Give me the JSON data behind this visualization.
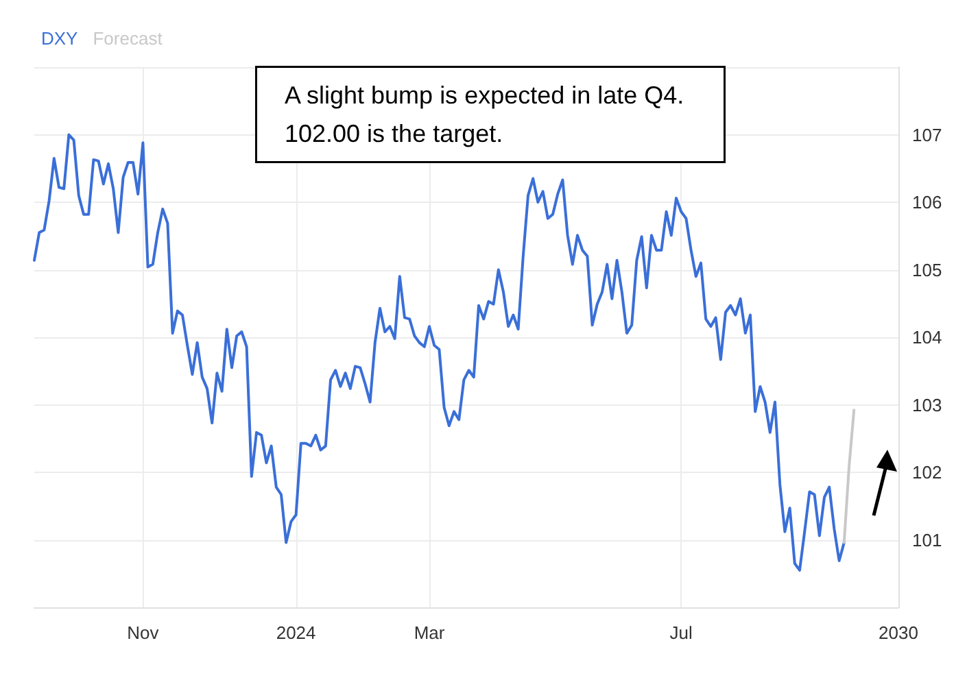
{
  "chart_data": {
    "type": "line",
    "annotations": [
      "A slight bump is expected in late Q4. 102.00 is the target."
    ],
    "categories": [
      null,
      null,
      null,
      null,
      null,
      null,
      null,
      null,
      null,
      null,
      null,
      null,
      null,
      null,
      null,
      null,
      null,
      null,
      null,
      null,
      null,
      null,
      "Nov",
      null,
      null,
      null,
      null,
      null,
      null,
      null,
      null,
      null,
      null,
      null,
      null,
      null,
      null,
      null,
      null,
      null,
      null,
      null,
      null,
      null,
      null,
      null,
      null,
      null,
      null,
      null,
      null,
      null,
      null,
      "2024",
      null,
      null,
      null,
      null,
      null,
      null,
      null,
      null,
      null,
      null,
      null,
      null,
      null,
      null,
      null,
      null,
      null,
      null,
      null,
      null,
      null,
      null,
      null,
      null,
      null,
      null,
      "Mar",
      null,
      null,
      null,
      null,
      null,
      null,
      null,
      null,
      null,
      null,
      null,
      null,
      null,
      null,
      null,
      null,
      null,
      null,
      null,
      null,
      null,
      null,
      null,
      null,
      null,
      null,
      null,
      null,
      null,
      null,
      null,
      null,
      null,
      null,
      null,
      null,
      null,
      null,
      null,
      null,
      null,
      null,
      null,
      null,
      null,
      null,
      null,
      null,
      null,
      null,
      "Jul",
      null,
      null,
      null,
      null,
      null,
      null,
      null,
      null,
      null,
      null,
      null,
      null,
      null,
      null,
      null,
      null,
      null,
      null,
      null,
      null,
      null,
      null,
      null,
      null,
      null,
      null,
      null,
      null,
      null,
      null,
      null,
      null,
      null,
      null,
      null,
      null,
      null,
      null,
      null,
      null,
      null,
      null,
      null,
      "2030"
    ],
    "series": [
      {
        "name": "DXY",
        "color": "#3a6fd8",
        "values": [
          105.14,
          105.55,
          105.59,
          106.02,
          106.65,
          106.22,
          106.2,
          107.0,
          106.92,
          106.1,
          105.82,
          105.82,
          106.63,
          106.61,
          106.27,
          106.57,
          106.2,
          105.55,
          106.37,
          106.59,
          106.59,
          106.12,
          106.88,
          105.04,
          105.08,
          105.55,
          105.9,
          105.69,
          104.06,
          104.39,
          104.33,
          103.88,
          103.45,
          103.92,
          103.41,
          103.24,
          102.73,
          103.47,
          103.2,
          104.12,
          103.55,
          104.02,
          104.08,
          103.86,
          101.94,
          102.59,
          102.55,
          102.14,
          102.39,
          101.78,
          101.67,
          100.96,
          101.27,
          101.37,
          102.43,
          102.43,
          102.39,
          102.55,
          102.33,
          102.39,
          103.37,
          103.51,
          103.27,
          103.47,
          103.24,
          103.57,
          103.55,
          103.31,
          103.04,
          103.92,
          104.43,
          104.08,
          104.16,
          103.98,
          104.9,
          104.29,
          104.27,
          104.02,
          103.92,
          103.86,
          104.16,
          103.88,
          103.82,
          102.96,
          102.69,
          102.9,
          102.78,
          103.37,
          103.51,
          103.41,
          104.47,
          104.27,
          104.53,
          104.49,
          105.0,
          104.67,
          104.16,
          104.33,
          104.12,
          105.2,
          106.1,
          106.35,
          106.0,
          106.16,
          105.76,
          105.82,
          106.12,
          106.33,
          105.51,
          105.08,
          105.51,
          105.29,
          105.2,
          104.18,
          104.49,
          104.67,
          105.08,
          104.57,
          105.14,
          104.67,
          104.06,
          104.18,
          105.14,
          105.49,
          104.73,
          105.51,
          105.29,
          105.29,
          105.86,
          105.51,
          106.06,
          105.86,
          105.76,
          105.29,
          104.9,
          105.1,
          104.27,
          104.16,
          104.29,
          103.67,
          104.37,
          104.47,
          104.33,
          104.57,
          104.06,
          104.33,
          102.9,
          103.27,
          103.04,
          102.59,
          103.04,
          101.82,
          101.12,
          101.47,
          100.65,
          100.55,
          101.12,
          101.71,
          101.67,
          101.06,
          101.63,
          101.78,
          101.16,
          100.69,
          100.96,
          null,
          null,
          null,
          null,
          null,
          null,
          null,
          null,
          null,
          null,
          null
        ]
      },
      {
        "name": "Forecast",
        "color": "#c8c8c8",
        "values": [
          null,
          null,
          null,
          null,
          null,
          null,
          null,
          null,
          null,
          null,
          null,
          null,
          null,
          null,
          null,
          null,
          null,
          null,
          null,
          null,
          null,
          null,
          null,
          null,
          null,
          null,
          null,
          null,
          null,
          null,
          null,
          null,
          null,
          null,
          null,
          null,
          null,
          null,
          null,
          null,
          null,
          null,
          null,
          null,
          null,
          null,
          null,
          null,
          null,
          null,
          null,
          null,
          null,
          null,
          null,
          null,
          null,
          null,
          null,
          null,
          null,
          null,
          null,
          null,
          null,
          null,
          null,
          null,
          null,
          null,
          null,
          null,
          null,
          null,
          null,
          null,
          null,
          null,
          null,
          null,
          null,
          null,
          null,
          null,
          null,
          null,
          null,
          null,
          null,
          null,
          null,
          null,
          null,
          null,
          null,
          null,
          null,
          null,
          null,
          null,
          null,
          null,
          null,
          null,
          null,
          null,
          null,
          null,
          null,
          null,
          null,
          null,
          null,
          null,
          null,
          null,
          null,
          null,
          null,
          null,
          null,
          null,
          null,
          null,
          null,
          null,
          null,
          null,
          null,
          null,
          null,
          null,
          null,
          null,
          null,
          null,
          null,
          null,
          null,
          null,
          null,
          null,
          null,
          null,
          null,
          null,
          null,
          null,
          null,
          null,
          null,
          null,
          null,
          null,
          null,
          null,
          null,
          null,
          null,
          null,
          null,
          null,
          null,
          null,
          100.96,
          102.08,
          102.92,
          null,
          null,
          null,
          null,
          null,
          null,
          null,
          null,
          null
        ]
      }
    ],
    "ylim": [
      100,
      108
    ],
    "yticks": [
      {
        "value": 100,
        "label": null
      },
      101,
      102,
      103,
      104,
      105,
      106,
      107,
      {
        "value": 108,
        "label": null
      }
    ],
    "grid": true,
    "legend": "top left",
    "marker": "none",
    "line_style": "solid"
  }
}
